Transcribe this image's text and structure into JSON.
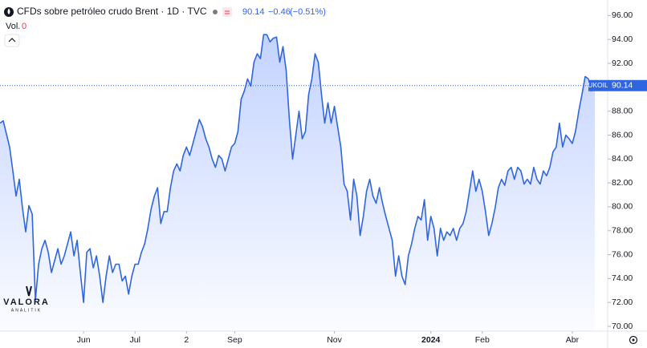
{
  "header": {
    "title": "CFDs sobre petróleo crudo Brent · 1D · TVC",
    "last": "90.14",
    "change": "−0.46",
    "change_pct": "(−0.51%)",
    "volume_label": "Vol.",
    "volume_value": "0"
  },
  "logo": {
    "name": "VALORA",
    "sub": "ANALITIK"
  },
  "chart_data": {
    "type": "area",
    "symbol": "UKOIL",
    "color": "#2f66e0",
    "x": [
      0,
      1,
      2,
      3,
      4,
      5,
      6,
      7,
      8,
      9,
      10,
      11,
      12,
      13,
      14,
      15,
      16,
      17,
      18,
      19,
      20,
      21,
      22,
      23,
      24,
      25,
      26,
      27,
      28,
      29,
      30,
      31,
      32,
      33,
      34,
      35,
      36,
      37,
      38,
      39,
      40,
      41,
      42,
      43,
      44,
      45,
      46,
      47,
      48,
      49,
      50,
      51,
      52,
      53,
      54,
      55,
      56,
      57,
      58,
      59,
      60,
      61,
      62,
      63,
      64,
      65,
      66,
      67,
      68,
      69,
      70,
      71,
      72,
      73,
      74,
      75,
      76,
      77,
      78,
      79,
      80,
      81,
      82,
      83,
      84,
      85,
      86,
      87,
      88,
      89,
      90,
      91,
      92,
      93,
      94,
      95,
      96,
      97,
      98,
      99,
      100,
      101,
      102,
      103,
      104,
      105,
      106,
      107,
      108,
      109,
      110,
      111,
      112,
      113,
      114,
      115,
      116,
      117,
      118,
      119,
      120,
      121,
      122,
      123,
      124,
      125,
      126,
      127,
      128,
      129,
      130,
      131,
      132,
      133,
      134,
      135,
      136,
      137,
      138,
      139,
      140,
      141,
      142,
      143,
      144,
      145,
      146,
      147,
      148,
      149,
      150,
      151,
      152,
      153,
      154,
      155,
      156,
      157,
      158,
      159,
      160,
      161,
      162,
      163,
      164,
      165,
      166,
      167,
      168,
      169,
      170,
      171,
      172,
      173,
      174,
      175,
      176,
      177,
      178,
      179,
      180,
      181,
      182,
      183,
      184,
      185
    ],
    "values": [
      87.0,
      87.2,
      86.1,
      85.0,
      83.0,
      80.9,
      82.3,
      79.9,
      77.9,
      80.1,
      79.4,
      72.2,
      75.2,
      76.5,
      77.2,
      76.2,
      74.5,
      75.5,
      76.5,
      75.2,
      75.9,
      76.9,
      77.9,
      75.9,
      77.2,
      74.5,
      72.0,
      76.2,
      76.5,
      74.9,
      75.9,
      74.2,
      72.0,
      74.2,
      75.9,
      74.5,
      75.2,
      75.2,
      73.8,
      74.2,
      72.7,
      74.2,
      75.2,
      75.2,
      76.2,
      76.9,
      78.2,
      79.8,
      80.9,
      81.6,
      78.6,
      79.6,
      79.6,
      81.6,
      83.0,
      83.6,
      83.0,
      84.3,
      85.0,
      84.3,
      85.3,
      86.3,
      87.3,
      86.7,
      85.7,
      85.0,
      84.0,
      83.3,
      84.3,
      84.0,
      83.0,
      84.0,
      85.0,
      85.3,
      86.3,
      89.0,
      89.7,
      90.7,
      90.1,
      92.1,
      92.8,
      92.4,
      94.4,
      94.4,
      93.8,
      94.1,
      94.2,
      92.1,
      93.4,
      91.4,
      87.3,
      84.0,
      86.0,
      88.0,
      85.7,
      86.3,
      89.4,
      90.7,
      92.8,
      92.1,
      89.4,
      87.0,
      88.7,
      87.0,
      88.4,
      86.7,
      85.0,
      81.9,
      81.3,
      78.9,
      82.3,
      80.9,
      77.6,
      79.2,
      81.3,
      82.3,
      80.9,
      80.3,
      81.6,
      80.3,
      79.2,
      78.2,
      77.2,
      74.2,
      75.9,
      74.2,
      73.5,
      75.9,
      76.9,
      78.2,
      79.2,
      78.9,
      80.6,
      77.2,
      79.2,
      78.2,
      75.9,
      78.2,
      77.2,
      77.9,
      77.6,
      78.2,
      77.2,
      78.2,
      78.6,
      79.6,
      81.3,
      83.0,
      81.3,
      82.3,
      81.3,
      79.6,
      77.6,
      78.6,
      79.9,
      81.6,
      82.3,
      81.8,
      83.0,
      83.3,
      82.3,
      83.3,
      83.0,
      81.9,
      82.3,
      81.9,
      83.3,
      82.3,
      81.9,
      83.0,
      82.6,
      83.3,
      84.6,
      85.0,
      87.0,
      85.0,
      86.0,
      85.7,
      85.3,
      86.3,
      88.0,
      89.4,
      90.9,
      90.7,
      89.7,
      90.14
    ],
    "xlim": [
      0,
      189
    ],
    "xticks": [
      {
        "value": 26,
        "label": "Jun"
      },
      {
        "value": 42,
        "label": "Jul"
      },
      {
        "value": 58,
        "label": "2"
      },
      {
        "value": 73,
        "label": "Sep"
      },
      {
        "value": 104,
        "label": "Nov"
      },
      {
        "value": 134,
        "label": "2024"
      },
      {
        "value": 150,
        "label": "Feb"
      },
      {
        "value": 178,
        "label": "Abr"
      }
    ],
    "ylim": [
      69.6,
      97.3
    ],
    "yticks": [
      {
        "value": 70,
        "label": "70.00"
      },
      {
        "value": 72,
        "label": "72.00"
      },
      {
        "value": 74,
        "label": "74.00"
      },
      {
        "value": 76,
        "label": "76.00"
      },
      {
        "value": 78,
        "label": "78.00"
      },
      {
        "value": 80,
        "label": "80.00"
      },
      {
        "value": 82,
        "label": "82.00"
      },
      {
        "value": 84,
        "label": "84.00"
      },
      {
        "value": 86,
        "label": "86.00"
      },
      {
        "value": 88,
        "label": "88.00"
      },
      {
        "value": 90,
        "label": "90.00"
      },
      {
        "value": 92,
        "label": "92.00"
      },
      {
        "value": 94,
        "label": "94.00"
      },
      {
        "value": 96,
        "label": "96.00"
      }
    ],
    "grid": false
  }
}
